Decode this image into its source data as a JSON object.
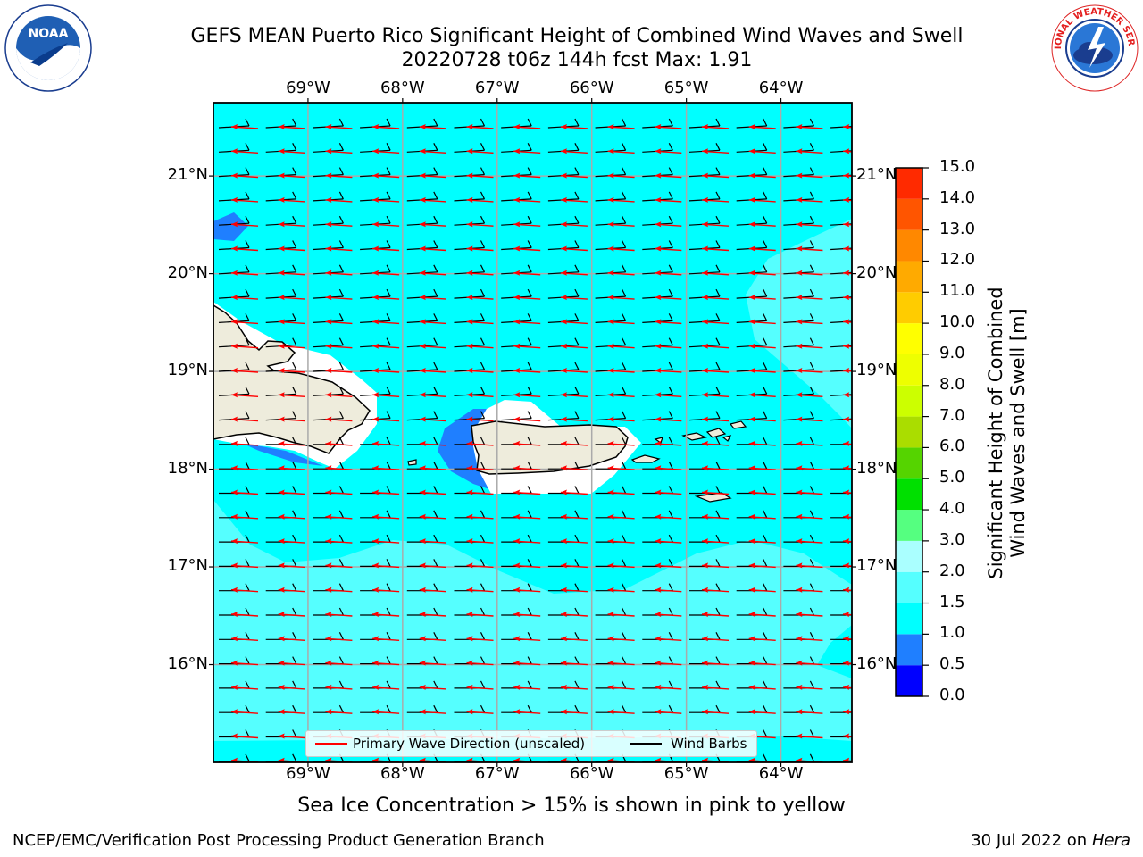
{
  "title": {
    "line1": "GEFS MEAN Puerto Rico Significant Height of Combined Wind Waves and Swell",
    "line2": "20220728 t06z 144h fcst   Max: 1.91"
  },
  "logos": {
    "left": {
      "icon": "noaa-logo",
      "text": "NOAA"
    },
    "right": {
      "icon": "national-weather-service-logo",
      "text": "NATIONAL WEATHER SERVICE"
    }
  },
  "map": {
    "lon_ticks": [
      "69°W",
      "68°W",
      "67°W",
      "66°W",
      "65°W",
      "64°W"
    ],
    "lat_ticks": [
      "21°N",
      "20°N",
      "19°N",
      "18°N",
      "17°N",
      "16°N"
    ],
    "lon_range": [
      -70.0,
      -63.25
    ],
    "lat_range": [
      15.0,
      21.75
    ],
    "ocean_color": "#00ffff",
    "land_color": "#eeecdc",
    "wave_arrow_color": "#ff0000",
    "barb_color": "#000000",
    "max_value": 1.91
  },
  "colorbar": {
    "title_line1": "Significant Height of Combined",
    "title_line2": "Wind Waves and Swell [m]",
    "ticks": [
      "0.0",
      "0.5",
      "1.0",
      "1.5",
      "2.0",
      "3.0",
      "4.0",
      "5.0",
      "6.0",
      "7.0",
      "8.0",
      "9.0",
      "10.0",
      "11.0",
      "12.0",
      "13.0",
      "14.0",
      "15.0"
    ],
    "colors": [
      "#0000ff",
      "#1f7fff",
      "#00ffff",
      "#55ffff",
      "#aaffff",
      "#55ff80",
      "#00e000",
      "#55d400",
      "#aadd00",
      "#ccff00",
      "#eeff00",
      "#ffff00",
      "#ffcc00",
      "#ffaa00",
      "#ff8800",
      "#ff5500",
      "#ff2a00",
      "#ff0000"
    ]
  },
  "legend": {
    "wave_label": "Primary Wave Direction (unscaled)",
    "barb_label": "Wind Barbs"
  },
  "note": "Sea Ice Concentration > 15% is shown in pink to yellow",
  "footer": {
    "left": "NCEP/EMC/Verification Post Processing Product Generation Branch",
    "right_date": "30 Jul 2022 on",
    "right_host": "Hera"
  }
}
